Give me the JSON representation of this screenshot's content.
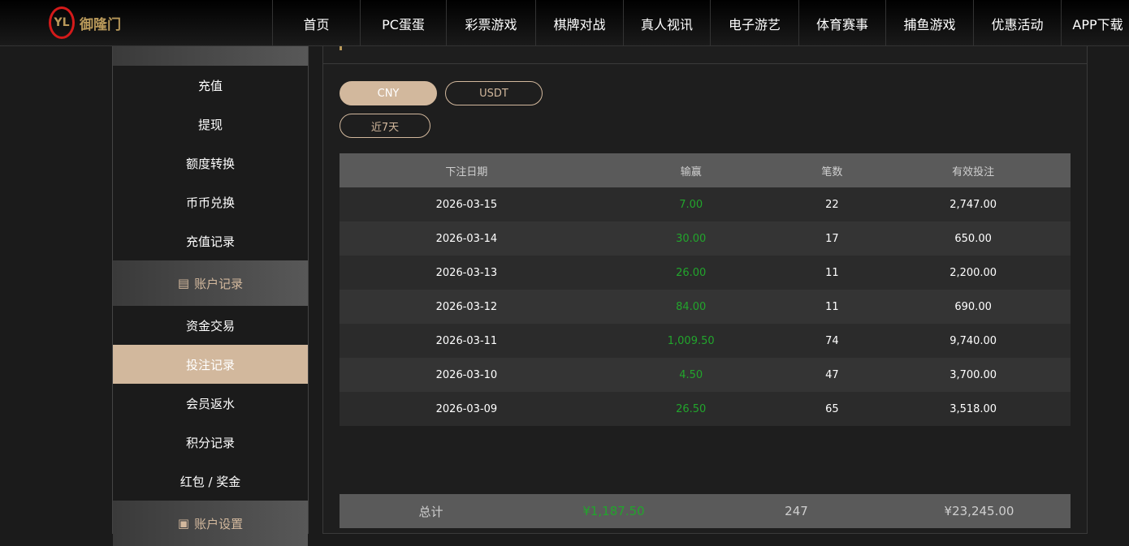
{
  "logo": {
    "text": "御隆门"
  },
  "nav": [
    "首页",
    "PC蛋蛋",
    "彩票游戏",
    "棋牌对战",
    "真人视讯",
    "电子游艺",
    "体育赛事",
    "捕鱼游戏",
    "优惠活动",
    "APP下载"
  ],
  "sidebar": {
    "fund_items": [
      "充值",
      "提现",
      "额度转换",
      "币币兑换",
      "充值记录"
    ],
    "records_header": "账户记录",
    "record_items": [
      "资金交易",
      "投注记录",
      "会员返水",
      "积分记录",
      "红包 / 奖金"
    ],
    "settings_header": "账户设置",
    "active": "投注记录"
  },
  "currency": {
    "options": [
      "CNY",
      "USDT"
    ],
    "selected": "CNY"
  },
  "period": "近7天",
  "table": {
    "headers": [
      "下注日期",
      "输赢",
      "笔数",
      "有效投注"
    ],
    "rows": [
      [
        "2026-03-15",
        "7.00",
        "22",
        "2,747.00"
      ],
      [
        "2026-03-14",
        "30.00",
        "17",
        "650.00"
      ],
      [
        "2026-03-13",
        "26.00",
        "11",
        "2,200.00"
      ],
      [
        "2026-03-12",
        "84.00",
        "11",
        "690.00"
      ],
      [
        "2026-03-11",
        "1,009.50",
        "74",
        "9,740.00"
      ],
      [
        "2026-03-10",
        "4.50",
        "47",
        "3,700.00"
      ],
      [
        "2026-03-09",
        "26.50",
        "65",
        "3,518.00"
      ]
    ],
    "total": [
      "总计",
      "¥1,187.50",
      "247",
      "¥23,245.00"
    ]
  },
  "colors": {
    "accent": "#d2b89d",
    "win": "#22a52c"
  }
}
